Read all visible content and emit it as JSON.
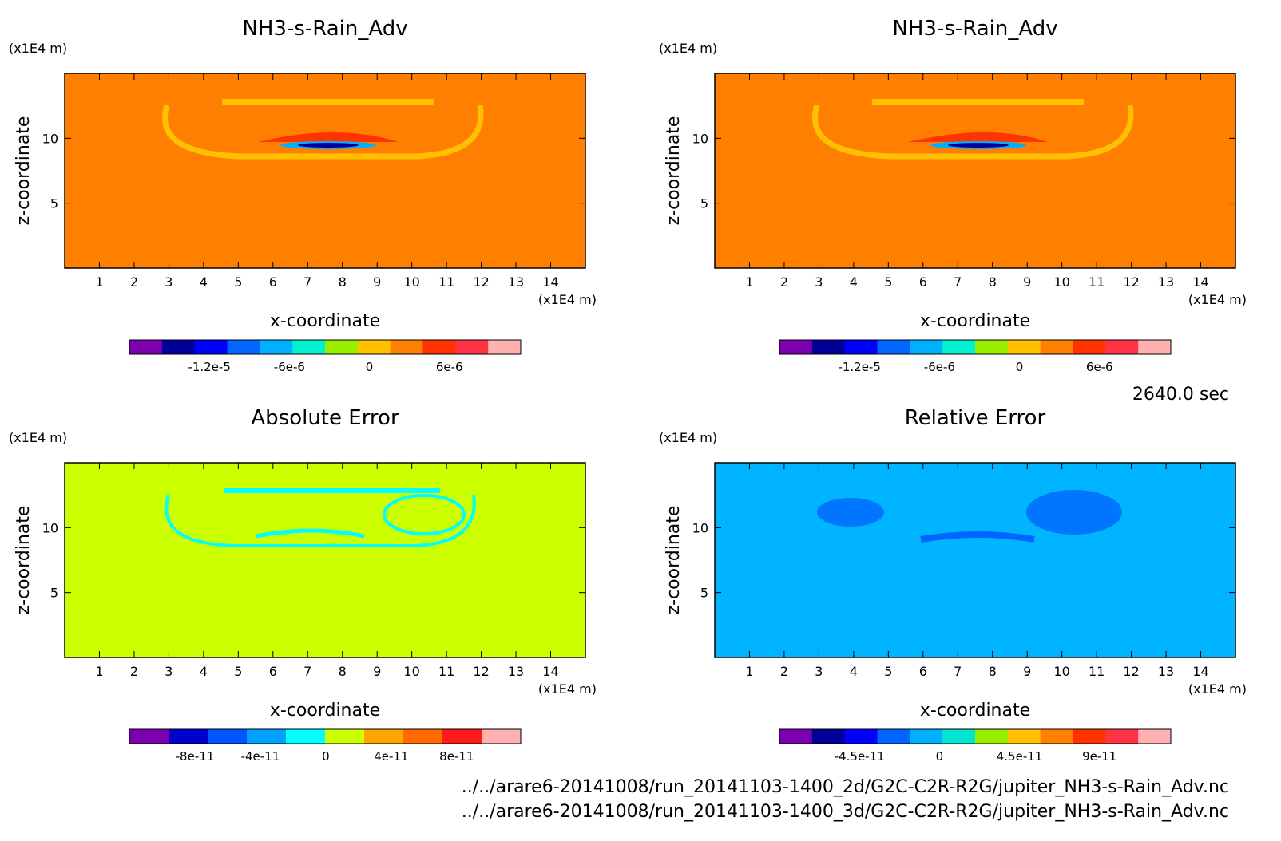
{
  "chart_data": [
    {
      "type": "heatmap",
      "title": "NH3-s-Rain_Adv",
      "xlabel": "x-coordinate",
      "ylabel": "z-coordinate",
      "x_unit": "(x1E4 m)",
      "y_unit": "(x1E4 m)",
      "xlim": [
        0,
        15
      ],
      "ylim": [
        0,
        15
      ],
      "x_ticks": [
        "1",
        "2",
        "3",
        "4",
        "5",
        "6",
        "7",
        "8",
        "9",
        "10",
        "11",
        "12",
        "13",
        "14"
      ],
      "y_ticks": [
        "5",
        "10"
      ],
      "background": "#ff8000",
      "colorbar": {
        "colors": [
          "#7a00b0",
          "#000099",
          "#0000ff",
          "#0066ff",
          "#00b0ff",
          "#00f0d0",
          "#99ee00",
          "#ffc000",
          "#ff8000",
          "#ff3300",
          "#ff3344",
          "#ffb0b0"
        ],
        "labels": [
          "-1.2e-5",
          "-6e-6",
          "0",
          "6e-6"
        ]
      }
    },
    {
      "type": "heatmap",
      "title": "NH3-s-Rain_Adv",
      "xlabel": "x-coordinate",
      "ylabel": "z-coordinate",
      "x_unit": "(x1E4 m)",
      "y_unit": "(x1E4 m)",
      "xlim": [
        0,
        15
      ],
      "ylim": [
        0,
        15
      ],
      "x_ticks": [
        "1",
        "2",
        "3",
        "4",
        "5",
        "6",
        "7",
        "8",
        "9",
        "10",
        "11",
        "12",
        "13",
        "14"
      ],
      "y_ticks": [
        "5",
        "10"
      ],
      "background": "#ff8000",
      "colorbar": {
        "colors": [
          "#7a00b0",
          "#000099",
          "#0000ff",
          "#0066ff",
          "#00b0ff",
          "#00f0d0",
          "#99ee00",
          "#ffc000",
          "#ff8000",
          "#ff3300",
          "#ff3344",
          "#ffb0b0"
        ],
        "labels": [
          "-1.2e-5",
          "-6e-6",
          "0",
          "6e-6"
        ]
      }
    },
    {
      "type": "heatmap",
      "title": "Absolute Error",
      "xlabel": "x-coordinate",
      "ylabel": "z-coordinate",
      "x_unit": "(x1E4 m)",
      "y_unit": "(x1E4 m)",
      "xlim": [
        0,
        15
      ],
      "ylim": [
        0,
        15
      ],
      "x_ticks": [
        "1",
        "2",
        "3",
        "4",
        "5",
        "6",
        "7",
        "8",
        "9",
        "10",
        "11",
        "12",
        "13",
        "14"
      ],
      "y_ticks": [
        "5",
        "10"
      ],
      "background": "#ccff00",
      "colorbar": {
        "colors": [
          "#7a00b0",
          "#0000cc",
          "#0055ff",
          "#00a0ff",
          "#00ffff",
          "#ccff00",
          "#ffa500",
          "#ff6a00",
          "#ff1a1a",
          "#ffb0b0"
        ],
        "labels": [
          "-8e-11",
          "-4e-11",
          "0",
          "4e-11",
          "8e-11"
        ]
      }
    },
    {
      "type": "heatmap",
      "title": "Relative Error",
      "xlabel": "x-coordinate",
      "ylabel": "z-coordinate",
      "x_unit": "(x1E4 m)",
      "y_unit": "(x1E4 m)",
      "xlim": [
        0,
        15
      ],
      "ylim": [
        0,
        15
      ],
      "x_ticks": [
        "1",
        "2",
        "3",
        "4",
        "5",
        "6",
        "7",
        "8",
        "9",
        "10",
        "11",
        "12",
        "13",
        "14"
      ],
      "y_ticks": [
        "5",
        "10"
      ],
      "background": "#00b4ff",
      "colorbar": {
        "colors": [
          "#7a00b0",
          "#000099",
          "#0000ff",
          "#0066ff",
          "#00b0ff",
          "#00e6d2",
          "#99ee00",
          "#ffc000",
          "#ff8000",
          "#ff3300",
          "#ff3344",
          "#ffb0b0"
        ],
        "labels": [
          "-4.5e-11",
          "0",
          "4.5e-11",
          "9e-11"
        ]
      }
    }
  ],
  "time_label": "2640.0 sec",
  "files": [
    "../../arare6-20141008/run_20141103-1400_2d/G2C-C2R-R2G/jupiter_NH3-s-Rain_Adv.nc",
    "../../arare6-20141008/run_20141103-1400_3d/G2C-C2R-R2G/jupiter_NH3-s-Rain_Adv.nc"
  ]
}
